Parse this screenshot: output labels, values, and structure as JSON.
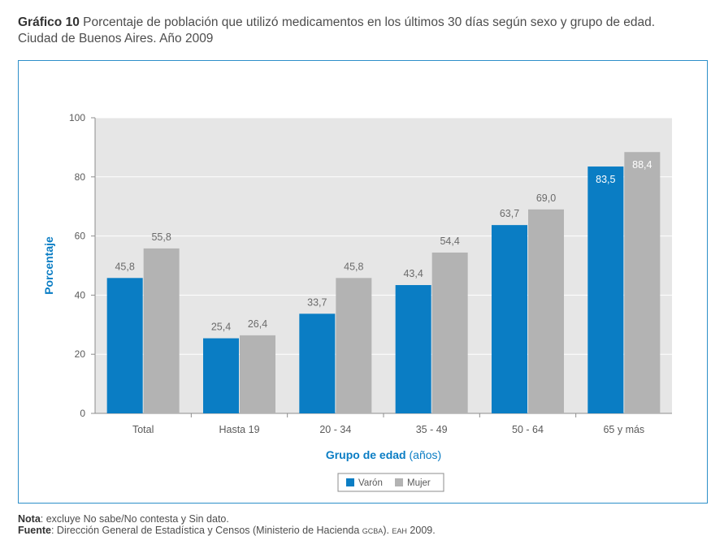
{
  "header": {
    "label": "Gráfico 10",
    "text": "Porcentaje de población que utilizó medicamentos en los últimos 30 días según sexo y grupo de edad.",
    "line2": "Ciudad de Buenos Aires. Año 2009"
  },
  "chart_data": {
    "type": "bar",
    "categories": [
      "Total",
      "Hasta 19",
      "20 - 34",
      "35 - 49",
      "50 - 64",
      "65 y más"
    ],
    "series": [
      {
        "name": "Varón",
        "values": [
          45.8,
          25.4,
          33.7,
          43.4,
          63.7,
          83.5
        ],
        "labels": [
          "45,8",
          "25,4",
          "33,7",
          "43,4",
          "63,7",
          "83,5"
        ],
        "color": "#0a7dc4"
      },
      {
        "name": "Mujer",
        "values": [
          55.8,
          26.4,
          45.8,
          54.4,
          69.0,
          88.4
        ],
        "labels": [
          "55,8",
          "26,4",
          "45,8",
          "54,4",
          "69,0",
          "88,4"
        ],
        "color": "#b3b3b3"
      }
    ],
    "ylim": [
      0,
      100
    ],
    "yticks": [
      0,
      20,
      40,
      60,
      80,
      100
    ],
    "ytick_labels": [
      "0",
      "20",
      "40",
      "60",
      "80",
      "100"
    ],
    "ylabel": "Porcentaje",
    "xlabel": "Grupo de edad",
    "xlabel_suffix": "(años)",
    "grid": true,
    "legend_position": "bottom-center",
    "accent_color": "#0a7dc4",
    "plot_background": "#e6e6e6"
  },
  "notes": {
    "nota_label": "Nota",
    "nota_text": ": excluye No sabe/No contesta y Sin dato.",
    "fuente_label": "Fuente",
    "fuente_text": ": Dirección General de Estadística y Censos (Ministerio de Hacienda ",
    "fuente_sc1": "GCBA",
    "fuente_mid": "). ",
    "fuente_sc2": "EAH",
    "fuente_end": " 2009."
  }
}
